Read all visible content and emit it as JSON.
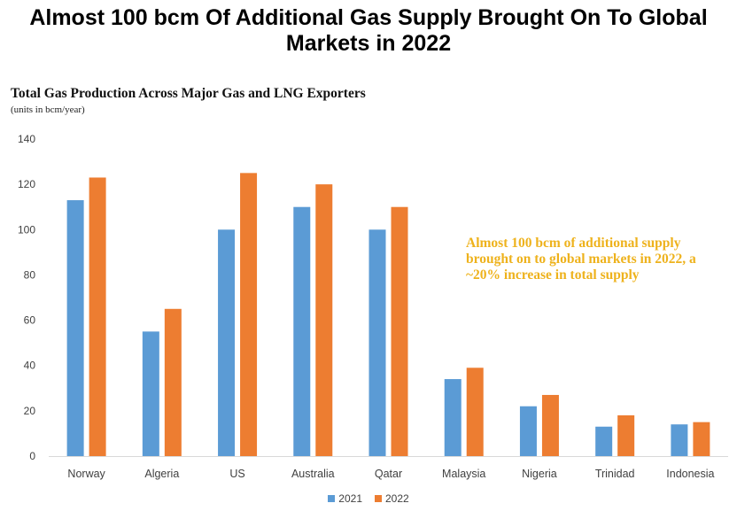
{
  "page_title": "Almost 100 bcm Of Additional Gas Supply Brought On To Global Markets in 2022",
  "chart_data": {
    "type": "bar",
    "title": "Total Gas Production Across Major Gas and LNG Exporters",
    "subtitle": "(units in bcm/year)",
    "annotation": "Almost 100 bcm of additional supply brought on to global markets in 2022, a ~20% increase in total supply",
    "categories": [
      "Norway",
      "Algeria",
      "US",
      "Australia",
      "Qatar",
      "Malaysia",
      "Nigeria",
      "Trinidad",
      "Indonesia"
    ],
    "series": [
      {
        "name": "2021",
        "color": "#5B9BD5",
        "values": [
          113,
          55,
          100,
          110,
          100,
          34,
          22,
          13,
          14
        ]
      },
      {
        "name": "2022",
        "color": "#ED7D31",
        "values": [
          123,
          65,
          125,
          120,
          110,
          39,
          27,
          18,
          15
        ]
      }
    ],
    "ylim": [
      0,
      140
    ],
    "yticks": [
      0,
      20,
      40,
      60,
      80,
      100,
      120,
      140
    ],
    "grid": false,
    "legend_position": "bottom-center"
  }
}
